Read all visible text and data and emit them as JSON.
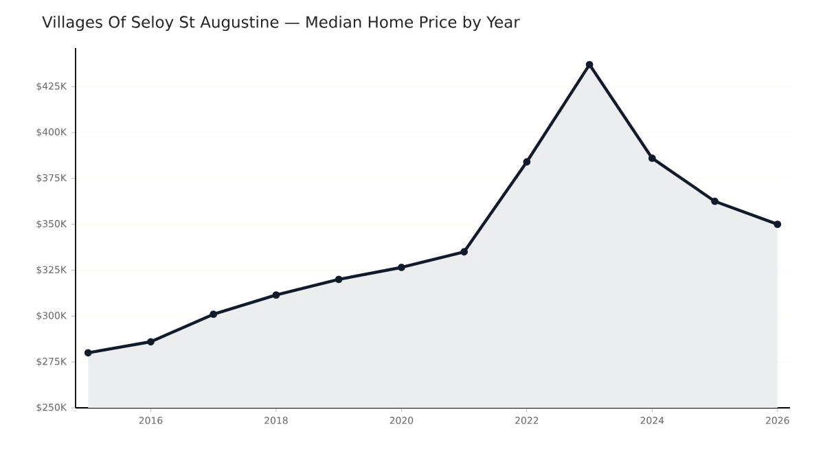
{
  "chart_data": {
    "type": "area",
    "title": "Villages Of Seloy St Augustine — Median Home Price by Year",
    "x": [
      2015,
      2016,
      2017,
      2018,
      2019,
      2020,
      2021,
      2022,
      2023,
      2024,
      2025,
      2026
    ],
    "values": [
      280,
      286,
      301,
      311.5,
      320,
      326.5,
      335,
      384,
      437,
      386,
      362.5,
      350
    ],
    "color": "#111b2e",
    "marker": "circle",
    "grid": "y",
    "xlim": [
      2014.8,
      2026.2
    ],
    "ylim": [
      250,
      446
    ],
    "xticks": [
      2016,
      2018,
      2020,
      2022,
      2024,
      2026
    ],
    "yticks": [
      {
        "value": 250,
        "label": "$250K"
      },
      {
        "value": 275,
        "label": "$275K"
      },
      {
        "value": 300,
        "label": "$300K"
      },
      {
        "value": 325,
        "label": "$325K"
      },
      {
        "value": 350,
        "label": "$350K"
      },
      {
        "value": 375,
        "label": "$375K"
      },
      {
        "value": 400,
        "label": "$400K"
      },
      {
        "value": 425,
        "label": "$425K"
      }
    ]
  }
}
